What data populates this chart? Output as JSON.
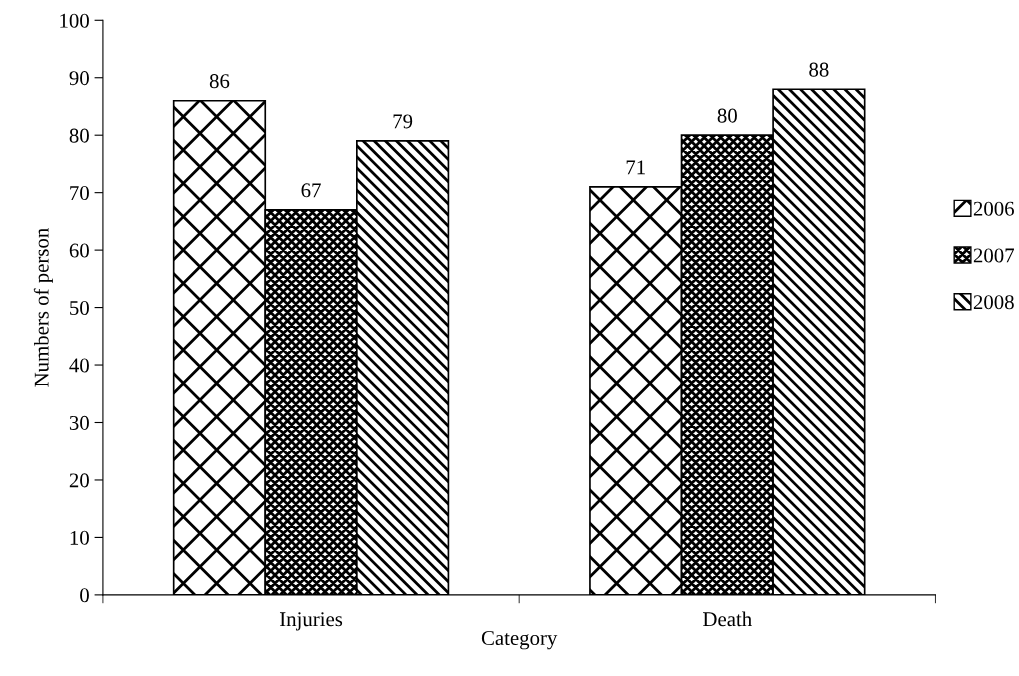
{
  "chart_data": {
    "type": "bar",
    "xlabel": "Category",
    "ylabel": "Numbers of person",
    "categories": [
      "Injuries",
      "Death"
    ],
    "series": [
      {
        "name": "2006",
        "color": "#000000",
        "values": [
          86,
          71
        ]
      },
      {
        "name": "2007",
        "color": "#000000",
        "values": [
          67,
          80
        ]
      },
      {
        "name": "2008",
        "color": "#000000",
        "values": [
          79,
          88
        ]
      }
    ],
    "ylim": [
      0,
      100
    ],
    "yticks": [
      0,
      10,
      20,
      30,
      40,
      50,
      60,
      70,
      80,
      90,
      100
    ],
    "grid": false,
    "legend": "right",
    "data_labels": true
  }
}
